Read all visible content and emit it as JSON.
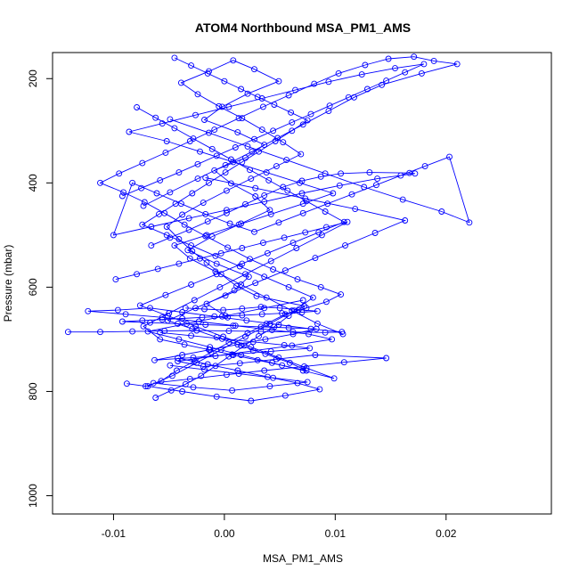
{
  "chart_data": {
    "type": "scatter",
    "title": "ATOM4 Northbound MSA_PM1_AMS",
    "xlabel": "MSA_PM1_AMS",
    "ylabel": "Pressure (mbar)",
    "xlim": [
      -0.0155,
      0.0295
    ],
    "ylim": [
      1035,
      150
    ],
    "y_reversed": true,
    "x_ticks": [
      -0.01,
      0.0,
      0.01,
      0.02
    ],
    "x_tick_labels": [
      "-0.01",
      "0.00",
      "0.01",
      "0.02"
    ],
    "y_ticks": [
      200,
      400,
      600,
      800,
      1000
    ],
    "y_tick_labels": [
      "200",
      "400",
      "600",
      "800",
      "1000"
    ],
    "marker": "open-circle",
    "connected": true,
    "grid": false,
    "legend": "none",
    "series_color": "#0000ff",
    "series": [
      {
        "x": [
          -0.0062,
          -0.0048,
          -0.0035,
          -0.0021,
          -0.0008,
          0.0004,
          0.0018,
          0.0031,
          0.0045,
          0.0058,
          0.0072,
          0.0029,
          0.0011,
          -0.0003,
          -0.0016,
          -0.0029,
          -0.0041,
          -0.0052,
          -0.0038,
          -0.0019,
          0.0002,
          0.0024,
          0.0047,
          0.0069,
          0.0053,
          0.0034,
          0.0016,
          -0.0005,
          -0.0024,
          -0.0039,
          -0.0014,
          0.0008,
          0.0027,
          0.0049,
          0.0021,
          -0.0002,
          -0.0018,
          0.0012,
          0.0036,
          0.0019,
          -0.0009,
          0.0006,
          0.0028,
          0.0041,
          0.0015,
          -0.0011,
          -0.0033,
          -0.0007,
          0.0022,
          0.0009,
          -0.0016,
          0.0003
        ],
        "y": [
          812,
          798,
          786,
          770,
          751,
          733,
          712,
          694,
          676,
          655,
          636,
          617,
          598,
          575,
          553,
          531,
          508,
          484,
          461,
          438,
          415,
          392,
          368,
          345,
          322,
          298,
          276,
          253,
          230,
          208,
          186,
          165,
          182,
          205,
          229,
          254,
          279,
          303,
          327,
          352,
          376,
          401,
          426,
          452,
          478,
          503,
          529,
          555,
          580,
          606,
          632,
          658
        ]
      },
      {
        "x": [
          -0.0088,
          -0.0071,
          -0.0057,
          -0.0043,
          -0.0027,
          -0.0012,
          0.0004,
          0.0021,
          0.0038,
          0.0055,
          0.0074,
          0.0092,
          0.0105,
          0.0087,
          0.0066,
          0.0044,
          0.0023,
          0.0003,
          -0.0017,
          -0.0036,
          -0.0054,
          -0.0072,
          -0.0091,
          -0.0112,
          -0.0095,
          -0.0074,
          -0.0053,
          -0.0031,
          -0.0009,
          0.0013,
          0.0035,
          0.0058,
          0.0081,
          0.0103,
          0.0127,
          0.0148,
          0.0171,
          0.0189,
          0.021,
          0.0178,
          0.0142,
          0.0117,
          0.0094,
          0.0071,
          0.0048,
          0.0025,
          0.0001,
          -0.0024,
          -0.0049,
          -0.0073
        ],
        "y": [
          785,
          790,
          780,
          760,
          742,
          725,
          706,
          688,
          670,
          652,
          640,
          628,
          614,
          600,
          585,
          566,
          546,
          524,
          502,
          480,
          458,
          437,
          418,
          400,
          382,
          362,
          342,
          320,
          298,
          276,
          254,
          232,
          210,
          190,
          174,
          162,
          158,
          166,
          172,
          190,
          212,
          236,
          262,
          288,
          314,
          340,
          366,
          392,
          418,
          444
        ]
      },
      {
        "x": [
          -0.0141,
          -0.0112,
          -0.0083,
          -0.0054,
          -0.0025,
          0.0004,
          0.0033,
          0.0062,
          0.0091,
          0.0106,
          0.0078,
          0.0049,
          0.002,
          -0.0009,
          -0.0038,
          -0.0067,
          -0.0096,
          -0.0123,
          -0.0089,
          -0.0056,
          -0.0023,
          0.001,
          0.0043,
          0.0076,
          0.0097,
          0.0061,
          0.0026,
          -0.0008,
          -0.0042,
          -0.0019,
          0.0014,
          0.0047,
          0.0082,
          0.0146,
          0.0108,
          0.0072,
          0.0036,
          0.0002,
          -0.0031,
          -0.0064,
          -0.0028,
          0.0007,
          0.0041,
          0.0075,
          0.0044,
          0.0013,
          -0.0018,
          -0.0049
        ],
        "y": [
          686,
          686,
          685,
          684,
          683,
          684,
          685,
          686,
          687,
          686,
          680,
          672,
          664,
          656,
          648,
          640,
          644,
          646,
          652,
          658,
          666,
          674,
          682,
          690,
          700,
          712,
          722,
          732,
          742,
          752,
          746,
          738,
          730,
          736,
          744,
          752,
          760,
          768,
          776,
          784,
          792,
          798,
          790,
          782,
          774,
          766,
          758,
          750
        ]
      },
      {
        "x": [
          -0.0066,
          -0.0049,
          -0.0032,
          -0.0015,
          0.0002,
          0.0019,
          0.0036,
          0.0053,
          0.007,
          0.0087,
          0.0105,
          0.0131,
          0.0167,
          0.0172,
          0.0138,
          0.0104,
          0.007,
          0.0036,
          0.0002,
          -0.0032,
          -0.0066,
          -0.01,
          -0.0083,
          -0.0061,
          -0.0039,
          -0.0017,
          0.0005,
          0.0027,
          0.0049,
          0.0071,
          0.0093,
          0.0115,
          0.0137,
          0.0159,
          0.0181,
          0.0203,
          0.0221,
          0.0196,
          0.0161,
          0.0126,
          0.0091,
          0.0056,
          0.0021,
          -0.0014,
          -0.0049
        ],
        "y": [
          520,
          505,
          490,
          474,
          458,
          441,
          424,
          408,
          396,
          388,
          382,
          380,
          381,
          382,
          392,
          405,
          420,
          436,
          452,
          468,
          484,
          500,
          400,
          420,
          440,
          460,
          478,
          494,
          476,
          458,
          440,
          422,
          404,
          386,
          368,
          350,
          476,
          455,
          432,
          408,
          382,
          356,
          330,
          304,
          278
        ]
      },
      {
        "x": [
          -0.0098,
          -0.0079,
          -0.006,
          -0.0041,
          -0.0022,
          -0.0003,
          0.0016,
          0.0035,
          0.0054,
          0.0073,
          0.0092,
          0.0111,
          0.0088,
          0.0065,
          0.0042,
          0.0019,
          -0.0004,
          -0.0027,
          -0.005,
          -0.0073,
          -0.0058,
          -0.0036,
          -0.0014,
          0.0008,
          0.003,
          0.0052,
          0.0074,
          0.0059,
          0.0037,
          0.0015,
          -0.0007,
          -0.0029,
          -0.0051,
          -0.0026,
          0.0001,
          0.0028,
          0.0055,
          0.0082,
          0.0109,
          0.0136,
          0.0163,
          0.0118,
          0.0073,
          0.0028,
          -0.0017
        ],
        "y": [
          585,
          575,
          565,
          555,
          545,
          535,
          525,
          515,
          505,
          495,
          485,
          475,
          500,
          525,
          550,
          575,
          600,
          625,
          650,
          675,
          700,
          710,
          720,
          730,
          740,
          750,
          760,
          745,
          728,
          712,
          696,
          680,
          664,
          640,
          616,
          592,
          568,
          544,
          520,
          496,
          472,
          450,
          430,
          410,
          390
        ]
      },
      {
        "x": [
          -0.0092,
          -0.0075,
          -0.0058,
          -0.0041,
          -0.0024,
          -0.0007,
          0.001,
          0.0027,
          0.0044,
          0.0061,
          0.0078,
          0.0095,
          0.0112,
          0.0129,
          0.0146,
          0.0163,
          0.018,
          0.0154,
          0.0124,
          0.0094,
          0.0064,
          0.0034,
          0.0004,
          -0.0026,
          -0.0056,
          -0.0086,
          -0.0052,
          -0.0022,
          0.0008,
          0.0038,
          0.0068,
          0.0098,
          0.0071,
          0.0042,
          0.0013,
          -0.0016,
          -0.0045,
          -0.0031,
          -0.0008,
          0.0015,
          0.0038,
          0.0061,
          0.0084,
          0.0107
        ],
        "y": [
          425,
          410,
          395,
          380,
          364,
          348,
          332,
          316,
          300,
          284,
          268,
          252,
          236,
          220,
          204,
          188,
          172,
          180,
          192,
          206,
          222,
          238,
          254,
          270,
          286,
          302,
          320,
          340,
          360,
          380,
          400,
          420,
          440,
          460,
          480,
          500,
          520,
          545,
          570,
          595,
          620,
          645,
          670,
          690
        ]
      },
      {
        "x": [
          -0.0045,
          -0.003,
          -0.0015,
          0.0,
          0.0015,
          0.003,
          0.0045,
          0.006,
          0.0075,
          0.0061,
          0.0046,
          0.0031,
          0.0016,
          0.0001,
          -0.0014,
          -0.0029,
          -0.0044,
          -0.0059,
          -0.0074,
          -0.0052,
          -0.003,
          -0.0008,
          0.0014,
          0.0036,
          0.0058,
          0.008,
          0.0063,
          0.0041,
          0.0019,
          -0.0003,
          -0.0025,
          -0.0047,
          -0.0069,
          -0.0038,
          -0.0007,
          0.0024,
          0.0055,
          0.0086,
          0.0066,
          0.0039,
          0.0012,
          -0.0015,
          -0.0042
        ],
        "y": [
          160,
          175,
          190,
          205,
          220,
          235,
          250,
          265,
          280,
          300,
          320,
          340,
          360,
          380,
          400,
          420,
          440,
          460,
          480,
          500,
          520,
          540,
          560,
          580,
          600,
          620,
          645,
          670,
          695,
          720,
          745,
          770,
          790,
          800,
          810,
          818,
          808,
          796,
          784,
          772,
          760,
          748,
          736
        ]
      },
      {
        "x": [
          -0.0035,
          -0.0018,
          -0.0001,
          0.0016,
          0.0033,
          0.005,
          0.0067,
          0.0084,
          0.007,
          0.0052,
          0.0034,
          0.0016,
          -0.0002,
          -0.002,
          -0.0038,
          -0.0056,
          -0.0074,
          -0.0092,
          -0.0067,
          -0.0042,
          -0.0017,
          0.0008,
          0.0033,
          0.0058,
          0.0083,
          0.0062,
          0.0037,
          0.0012,
          -0.0013,
          -0.0038,
          -0.0063,
          -0.0028,
          0.0007,
          0.0042,
          0.0077,
          0.0054,
          0.0026,
          -0.0002,
          -0.003,
          -0.0058
        ],
        "y": [
          640,
          642,
          644,
          641,
          638,
          640,
          643,
          646,
          648,
          650,
          652,
          654,
          656,
          658,
          660,
          662,
          664,
          666,
          668,
          670,
          672,
          674,
          676,
          678,
          680,
          690,
          700,
          710,
          720,
          730,
          740,
          735,
          729,
          723,
          717,
          711,
          705,
          699,
          693,
          687
        ]
      },
      {
        "x": [
          -0.0079,
          -0.0062,
          -0.0045,
          -0.0028,
          -0.0011,
          0.0006,
          0.0023,
          0.004,
          0.0057,
          0.0074,
          0.0091,
          0.0108,
          0.0085,
          0.0062,
          0.0039,
          0.0016,
          -0.0007,
          -0.003,
          -0.0053,
          -0.0076,
          -0.0051,
          -0.0026,
          -0.0001,
          0.0024,
          0.0049,
          0.0074,
          0.0099,
          0.0071,
          0.0043,
          0.0015,
          -0.0013,
          -0.0041,
          -0.0069,
          -0.0034,
          0.0001,
          0.0036,
          0.0071
        ],
        "y": [
          255,
          275,
          295,
          315,
          335,
          355,
          375,
          395,
          415,
          435,
          455,
          475,
          495,
          515,
          535,
          555,
          575,
          595,
          615,
          635,
          655,
          675,
          695,
          715,
          735,
          755,
          775,
          760,
          745,
          730,
          715,
          700,
          685,
          670,
          655,
          640,
          625
        ]
      }
    ]
  }
}
